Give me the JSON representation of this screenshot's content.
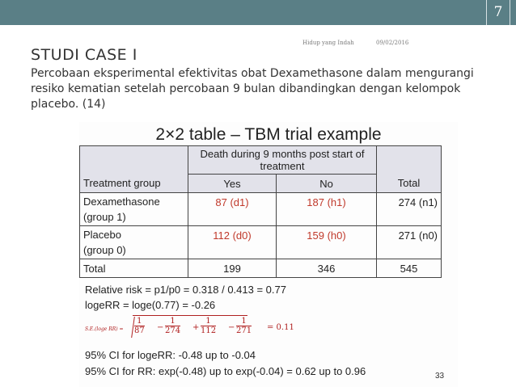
{
  "slide": {
    "page_number": "7",
    "footer_left": "Hidup yang Indah",
    "footer_date": "09/02/2016",
    "title": "STUDI CASE I",
    "subtitle": "Percobaan eksperimental efektivitas obat Dexamethasone dalam mengurangi resiko kematian setelah percobaan 9 bulan dibandingkan dengan kelompok placebo.  (14)"
  },
  "figure": {
    "title": "2×2 table – TBM trial example",
    "header_top": "Death during 9 months post start of treatment",
    "columns": [
      "Treatment group",
      "Yes",
      "No",
      "Total"
    ],
    "rows": [
      {
        "label": "Dexamethasone",
        "sublabel": "(group 1)",
        "yes": "87 (d1)",
        "no": "187 (h1)",
        "total": "274 (n1)"
      },
      {
        "label": "Placebo",
        "sublabel": "(group 0)",
        "yes": "112 (d0)",
        "no": "159 (h0)",
        "total": "271 (n0)"
      }
    ],
    "totals": {
      "label": "Total",
      "yes": "199",
      "no": "346",
      "total": "545"
    },
    "calc_rr": "Relative risk = p1/p0 = 0.318 / 0.413 = 0.77",
    "calc_log": "logeRR = loge(0.77) = -0.26",
    "se_label": "S.E.(loge RR) =",
    "se_terms": [
      "1/87",
      "1/274",
      "1/112",
      "1/271"
    ],
    "se_ops": [
      "−",
      "+",
      "−"
    ],
    "se_result": "= 0.11",
    "ci_log": "95% CI for logeRR: -0.48 up to -0.04",
    "ci_rr": "95% CI for RR:  exp(-0.48) up to exp(-0.04) = 0.62 up to 0.96",
    "page": "33"
  }
}
